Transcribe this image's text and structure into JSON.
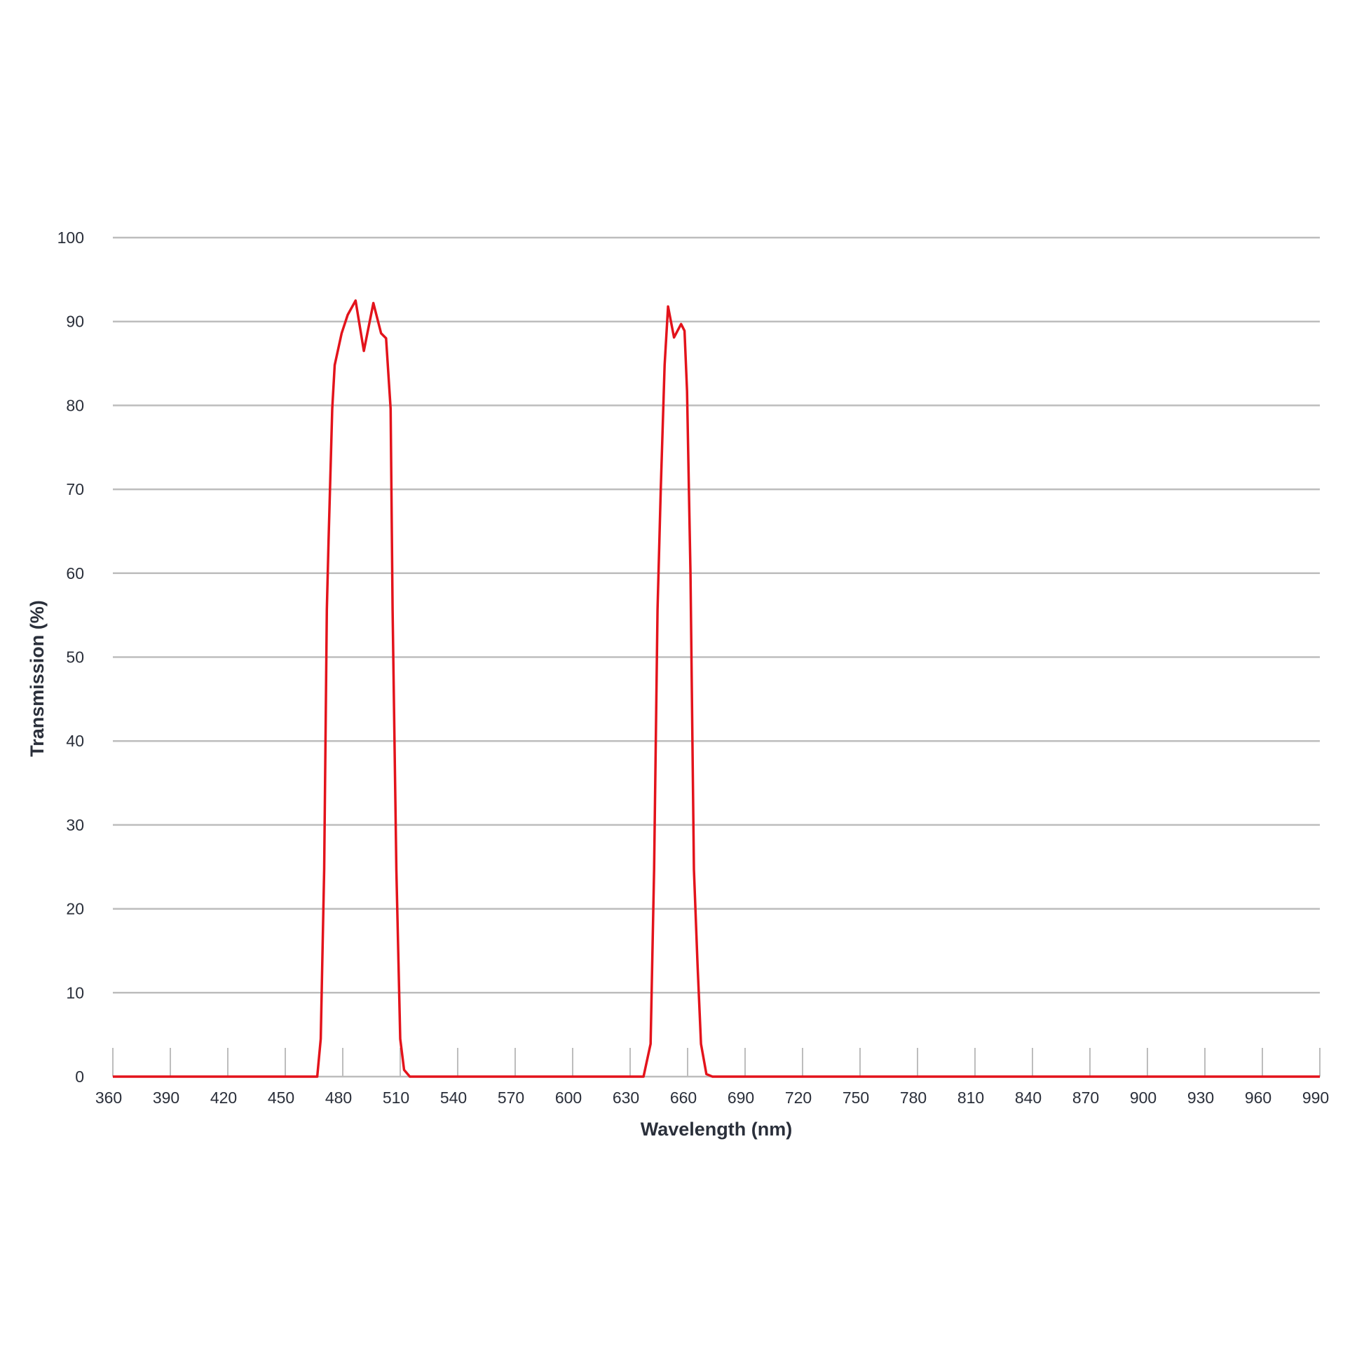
{
  "chart_data": {
    "type": "line",
    "title": "",
    "xlabel": "Wavelength (nm)",
    "ylabel": "Transmission (%)",
    "xlim": [
      360,
      990
    ],
    "ylim": [
      0,
      100
    ],
    "xticks": [
      360,
      390,
      420,
      450,
      480,
      510,
      540,
      570,
      600,
      630,
      660,
      690,
      720,
      750,
      780,
      810,
      840,
      870,
      900,
      930,
      960,
      990
    ],
    "yticks": [
      0,
      10,
      20,
      30,
      40,
      50,
      60,
      70,
      80,
      90,
      100
    ],
    "grid": "horizontal",
    "legend": "none",
    "colors": {
      "series": "#e3131b",
      "grid": "#bdbdbd",
      "text": "#2a2f3a"
    },
    "series": [
      {
        "x": [
          360,
          466.7,
          468.5,
          470.3,
          471.7,
          472.6,
          474.5,
          475.8,
          479.4,
          482.6,
          486.7,
          491,
          496,
          500,
          502.6,
          505,
          506,
          508,
          510,
          512,
          515,
          637,
          640.7,
          642.5,
          644.3,
          646,
          648,
          649.8,
          652.9,
          656.6,
          658.4,
          659.7,
          661.5,
          663.3,
          665.2,
          667,
          669.8,
          673,
          990
        ],
        "y": [
          0,
          0,
          4.5,
          24.7,
          55.7,
          64,
          79.6,
          84.8,
          88.6,
          90.8,
          92.5,
          86.5,
          92.2,
          88.6,
          88,
          79.6,
          55.7,
          24.6,
          4.5,
          0.8,
          0,
          0,
          3.9,
          24.7,
          55.7,
          70,
          84.8,
          91.8,
          88.1,
          89.7,
          88.9,
          81.7,
          60,
          24.7,
          13.3,
          3.9,
          0.3,
          0,
          0
        ]
      }
    ]
  }
}
